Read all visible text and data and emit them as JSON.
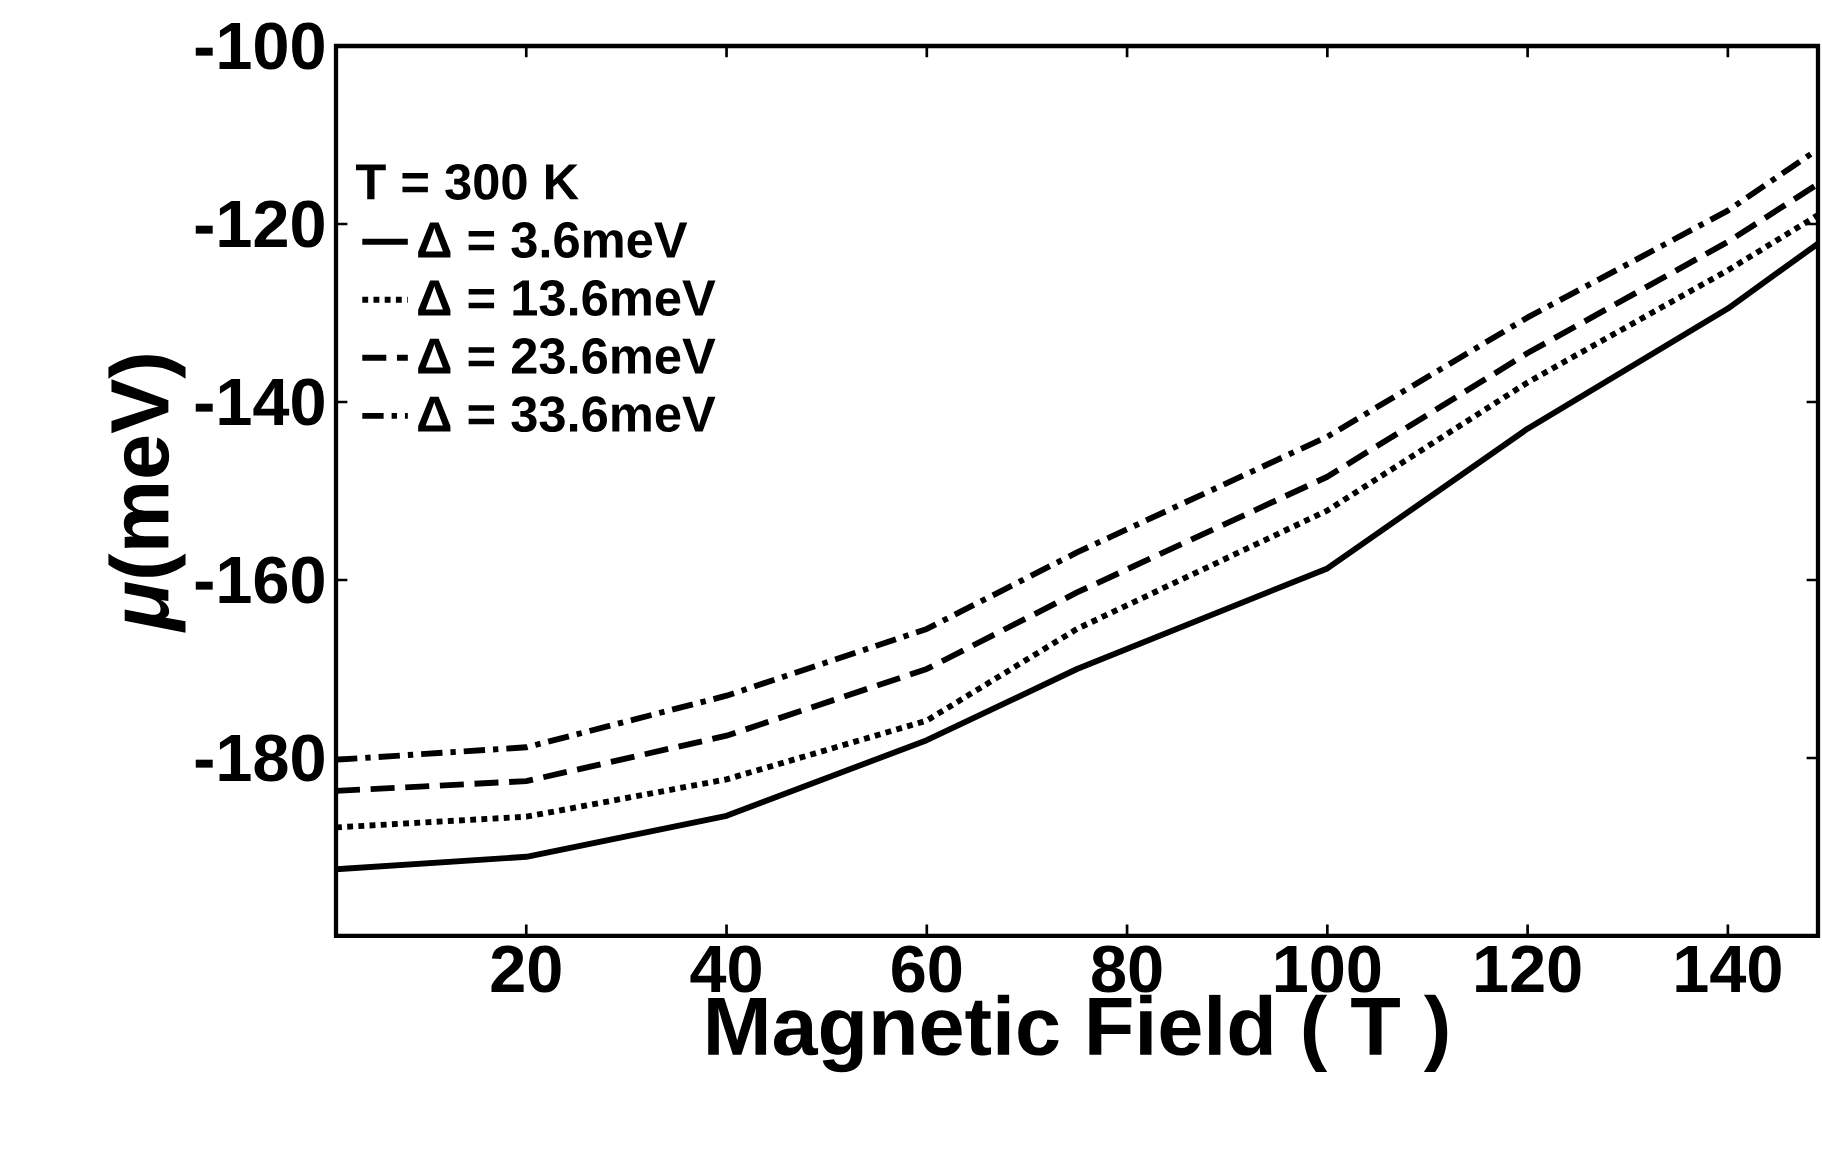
{
  "chart_data": {
    "type": "line",
    "xlabel": "Magnetic Field ( T )",
    "ylabel": "*μ*(meV)",
    "legend_title": "T = 300 K",
    "x": [
      1,
      20,
      40,
      60,
      75,
      100,
      120,
      140,
      149
    ],
    "series": [
      {
        "name": "Δ = 3.6meV",
        "color": "#000000",
        "line_style": "solid",
        "values": [
          -192.5,
          -191.1,
          -186.5,
          -178,
          -170,
          -158.7,
          -143,
          -129.5,
          -122.2
        ]
      },
      {
        "name": "Δ = 13.6meV",
        "color": "#000000",
        "line_style": "dotted",
        "values": [
          -187.8,
          -186.6,
          -182.4,
          -175.8,
          -165.5,
          -152.2,
          -137.8,
          -125.2,
          -119
        ]
      },
      {
        "name": "Δ = 23.6meV",
        "color": "#000000",
        "line_style": "dashed",
        "values": [
          -183.7,
          -182.6,
          -177.5,
          -170,
          -161.4,
          -148.4,
          -134.5,
          -122,
          -115.5
        ]
      },
      {
        "name": "Δ = 33.6meV",
        "color": "#000000",
        "line_style": "dashdot",
        "values": [
          -180.2,
          -178.8,
          -173,
          -165.5,
          -156.9,
          -143.9,
          -130.5,
          -118.5,
          -111.6
        ]
      }
    ],
    "xlim": [
      1,
      149
    ],
    "ylim": [
      -200,
      -100
    ],
    "xticks": [
      20,
      40,
      60,
      80,
      100,
      120,
      140
    ],
    "yticks": [
      -180,
      -160,
      -140,
      -120,
      -100
    ],
    "grid": false,
    "legend": "top left",
    "marker": "none"
  }
}
